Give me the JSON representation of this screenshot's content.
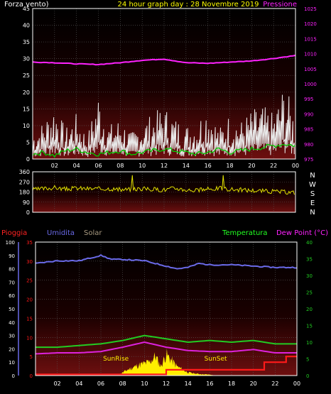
{
  "header": {
    "wind_label": "Forza vento)",
    "title": "24 hour graph day : 28 Novembre 2019",
    "pressure_label": "Pressione"
  },
  "colors": {
    "pressure": "#ff22ff",
    "gust": "#e8e8e8",
    "wind": "#00cc00",
    "direction": "#e0e000",
    "humidity": "#6a6ae8",
    "temperature": "#22cc22",
    "dewpoint": "#dd22dd",
    "rain": "#ff1a1a",
    "solar": "#ffee00",
    "frame": "#ffffff",
    "plot_top": "#7a1010",
    "plot_bottom": "#000000"
  },
  "x_ticks": [
    "02",
    "04",
    "06",
    "08",
    "10",
    "12",
    "14",
    "16",
    "18",
    "20",
    "22",
    "00"
  ],
  "chart_data": [
    {
      "id": "wind-pressure",
      "type": "line",
      "left_axis": {
        "label": "Forza vento)",
        "min": 0,
        "max": 45,
        "ticks": [
          "0",
          "5",
          "10",
          "15",
          "20",
          "25",
          "30",
          "35",
          "40",
          "45"
        ]
      },
      "right_axis": {
        "label": "Pressione",
        "min": 975,
        "max": 1025,
        "ticks": [
          "975",
          "980",
          "985",
          "990",
          "995",
          "1000",
          "1005",
          "1010",
          "1015",
          "1020",
          "1025"
        ]
      },
      "pressure": {
        "x": [
          0,
          2,
          4,
          6,
          8,
          10,
          12,
          14,
          16,
          18,
          20,
          22,
          24
        ],
        "values": [
          1007.2,
          1007.0,
          1006.6,
          1006.4,
          1007.0,
          1007.8,
          1008.2,
          1007.0,
          1006.8,
          1007.2,
          1007.6,
          1008.4,
          1009.4
        ]
      },
      "wind": {
        "x": [
          0,
          1,
          2,
          3,
          4,
          5,
          6,
          7,
          8,
          9,
          10,
          11,
          12,
          13,
          14,
          15,
          16,
          17,
          18,
          19,
          20,
          21,
          22,
          23,
          24
        ],
        "values": [
          1.5,
          2,
          1,
          2.5,
          3,
          2,
          1.5,
          2,
          2.5,
          1.5,
          2,
          2.5,
          3,
          2.5,
          2,
          1.5,
          2,
          3,
          2,
          2.5,
          3,
          3.5,
          4,
          4.5,
          4
        ]
      },
      "gust": {
        "x": [
          0,
          1,
          2,
          3,
          4,
          5,
          6,
          7,
          8,
          9,
          10,
          11,
          12,
          13,
          14,
          15,
          16,
          17,
          18,
          19,
          20,
          21,
          22,
          23,
          24
        ],
        "values": [
          7,
          10,
          15,
          8,
          12,
          6,
          18,
          9,
          11,
          7,
          10,
          12,
          14,
          11,
          9,
          10,
          15,
          8,
          12,
          10,
          13,
          14,
          12,
          20,
          11
        ]
      }
    },
    {
      "id": "wind-direction",
      "type": "line",
      "left_axis": {
        "min": 0,
        "max": 360,
        "ticks": [
          "0",
          "90",
          "180",
          "270",
          "360"
        ]
      },
      "compass_labels": [
        "N",
        "W",
        "S",
        "E",
        "N"
      ],
      "direction": {
        "x": [
          0,
          1,
          2,
          3,
          4,
          5,
          6,
          7,
          8,
          9,
          10,
          11,
          12,
          13,
          14,
          15,
          16,
          17,
          18,
          19,
          20,
          21,
          22,
          23,
          24
        ],
        "values": [
          200,
          210,
          220,
          205,
          215,
          210,
          208,
          212,
          200,
          205,
          210,
          205,
          200,
          215,
          200,
          195,
          205,
          215,
          205,
          200,
          195,
          190,
          185,
          180,
          175
        ]
      }
    },
    {
      "id": "rain-humidity-temp",
      "type": "line",
      "labels": {
        "rain": "Pioggia",
        "humidity": "Umidita",
        "solar": "Solar",
        "temperature": "Temperatura",
        "dewpoint": "Dew Point (°C)"
      },
      "humidity_axis": {
        "min": 0,
        "max": 100,
        "ticks": [
          "0",
          "10",
          "20",
          "30",
          "40",
          "50",
          "60",
          "70",
          "80",
          "90",
          "100"
        ]
      },
      "rain_axis": {
        "min": 0,
        "max": 35,
        "ticks": [
          "0",
          "5",
          "10",
          "15",
          "20",
          "25",
          "30",
          "35"
        ]
      },
      "temp_axis": {
        "min": 0,
        "max": 40,
        "ticks": [
          "0",
          "5",
          "10",
          "15",
          "20",
          "25",
          "30",
          "35",
          "40"
        ]
      },
      "annotations": {
        "sunrise": "SunRise",
        "sunset": "SunSet"
      },
      "humidity": {
        "x": [
          0,
          2,
          4,
          5,
          6,
          7,
          8,
          10,
          12,
          13,
          14,
          15,
          16,
          18,
          20,
          22,
          24
        ],
        "values": [
          84,
          86,
          86,
          88,
          90,
          87,
          87,
          86,
          82,
          80,
          81,
          84,
          83,
          83,
          82,
          81,
          81
        ]
      },
      "temperature": {
        "x": [
          0,
          2,
          4,
          6,
          8,
          10,
          12,
          14,
          16,
          18,
          20,
          22,
          24
        ],
        "values": [
          8.5,
          8.5,
          9,
          9.5,
          10.5,
          12,
          11,
          10,
          10.5,
          10,
          10.5,
          9.5,
          9.5
        ]
      },
      "dewpoint": {
        "x": [
          0,
          2,
          4,
          6,
          8,
          10,
          12,
          14,
          16,
          18,
          20,
          22,
          24
        ],
        "values": [
          6.5,
          6.8,
          6.8,
          7.2,
          8.5,
          10,
          8.5,
          7.5,
          7.2,
          7.2,
          7.8,
          6.8,
          6.8
        ]
      },
      "rain": {
        "x": [
          0,
          11,
          12,
          20.8,
          21,
          23,
          23.01,
          24
        ],
        "values": [
          0.3,
          0.3,
          1.5,
          1.5,
          3.5,
          3.5,
          5,
          5
        ]
      },
      "solar": {
        "x": [
          7.5,
          8.5,
          9.5,
          10.5,
          11,
          11.5,
          12,
          12.5,
          13,
          14,
          15,
          16,
          16.5
        ],
        "values": [
          0,
          2,
          3.5,
          4.5,
          6.5,
          3,
          7,
          5,
          3,
          1,
          0.5,
          0.3,
          0
        ]
      }
    }
  ]
}
